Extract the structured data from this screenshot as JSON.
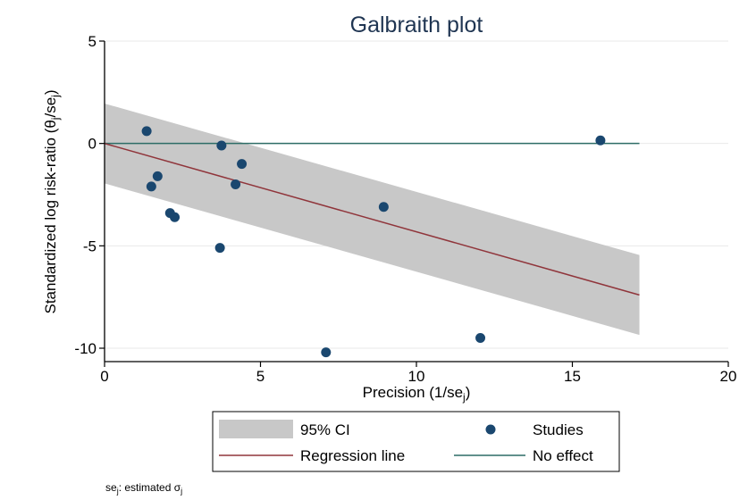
{
  "chart_data": {
    "type": "scatter",
    "title": "Galbraith plot",
    "xlabel": "Precision (1/se",
    "xlabel_sub": "j",
    "xlabel_close": ")",
    "ylabel": "Standardized log risk-ratio (θ",
    "ylabel_sub1": "j",
    "ylabel_mid": "/se",
    "ylabel_sub2": "j",
    "ylabel_close": ")",
    "xlim": [
      0,
      20
    ],
    "ylim": [
      -10,
      5
    ],
    "xticks": [
      0,
      5,
      10,
      15,
      20
    ],
    "yticks": [
      5,
      0,
      -5,
      -10
    ],
    "xtick_labels": [
      "0",
      "5",
      "10",
      "15",
      "20"
    ],
    "ytick_labels": [
      "5",
      "0",
      "-5",
      "-10"
    ],
    "grid": "horizontal",
    "studies": [
      {
        "x": 1.35,
        "y": 0.6
      },
      {
        "x": 1.5,
        "y": -2.1
      },
      {
        "x": 1.7,
        "y": -1.6
      },
      {
        "x": 2.1,
        "y": -3.4
      },
      {
        "x": 2.25,
        "y": -3.6
      },
      {
        "x": 3.7,
        "y": -5.1
      },
      {
        "x": 3.75,
        "y": -0.1
      },
      {
        "x": 4.2,
        "y": -2.0
      },
      {
        "x": 4.4,
        "y": -1.0
      },
      {
        "x": 7.1,
        "y": -10.2
      },
      {
        "x": 8.95,
        "y": -3.1
      },
      {
        "x": 12.05,
        "y": -9.5
      },
      {
        "x": 15.9,
        "y": 0.15
      }
    ],
    "regression_line": {
      "x": [
        0,
        17.15
      ],
      "y": [
        0,
        -7.4
      ]
    },
    "ci_band": {
      "x": [
        0,
        17.15
      ],
      "upper": [
        1.95,
        -5.45
      ],
      "lower": [
        -1.95,
        -9.35
      ]
    },
    "no_effect": {
      "x": [
        0,
        17.15
      ],
      "y": 0
    },
    "colors": {
      "studies": "#1a476f",
      "regression": "#90353b",
      "no_effect": "#2d6d66",
      "ci": "#c8c8c8",
      "title": "#1f3552",
      "grid": "#eaeaea"
    },
    "legend": {
      "placement": "bottom",
      "entries": [
        {
          "label": "95% CI",
          "kind": "band"
        },
        {
          "label": "Studies",
          "kind": "marker"
        },
        {
          "label": "Regression line",
          "kind": "regression"
        },
        {
          "label": "No effect",
          "kind": "noeffect"
        }
      ]
    },
    "note": {
      "prefix": "se",
      "sub1": "j",
      "mid": ": estimated σ",
      "sub2": "j"
    }
  }
}
